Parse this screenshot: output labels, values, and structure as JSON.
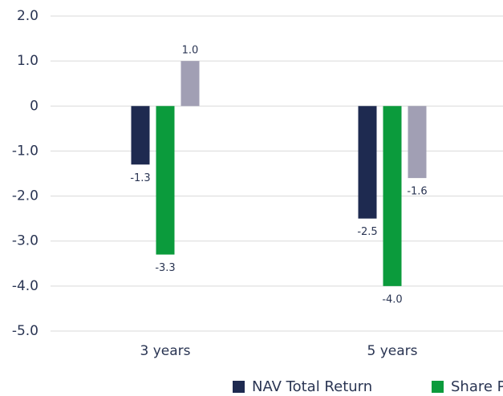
{
  "chart_data": {
    "type": "bar",
    "categories": [
      "3 years",
      "5 years"
    ],
    "series": [
      {
        "name": "NAV Total Return",
        "color": "#1e2a50",
        "values": [
          -1.3,
          -2.5
        ],
        "value_labels": [
          "-1.3",
          "-2.5"
        ]
      },
      {
        "name": "Share Price Total Return",
        "color": "#0b9b3c",
        "values": [
          -3.3,
          -4.0
        ],
        "value_labels": [
          "-3.3",
          "-4.0"
        ]
      },
      {
        "color": "#a19fb4",
        "values": [
          1.0,
          -1.6
        ],
        "value_labels": [
          "1.0",
          "-1.6"
        ]
      }
    ],
    "ylim": [
      -5,
      2
    ],
    "yticks": [
      {
        "value": 2,
        "label": "2.0"
      },
      {
        "value": 1,
        "label": "1.0"
      },
      0,
      {
        "value": -1,
        "label": "-1.0"
      },
      {
        "value": -2,
        "label": "-2.0"
      },
      {
        "value": -3,
        "label": "-3.0"
      },
      {
        "value": -4,
        "label": "-4.0"
      },
      {
        "value": -5,
        "label": "-5.0"
      }
    ],
    "grid": true
  }
}
